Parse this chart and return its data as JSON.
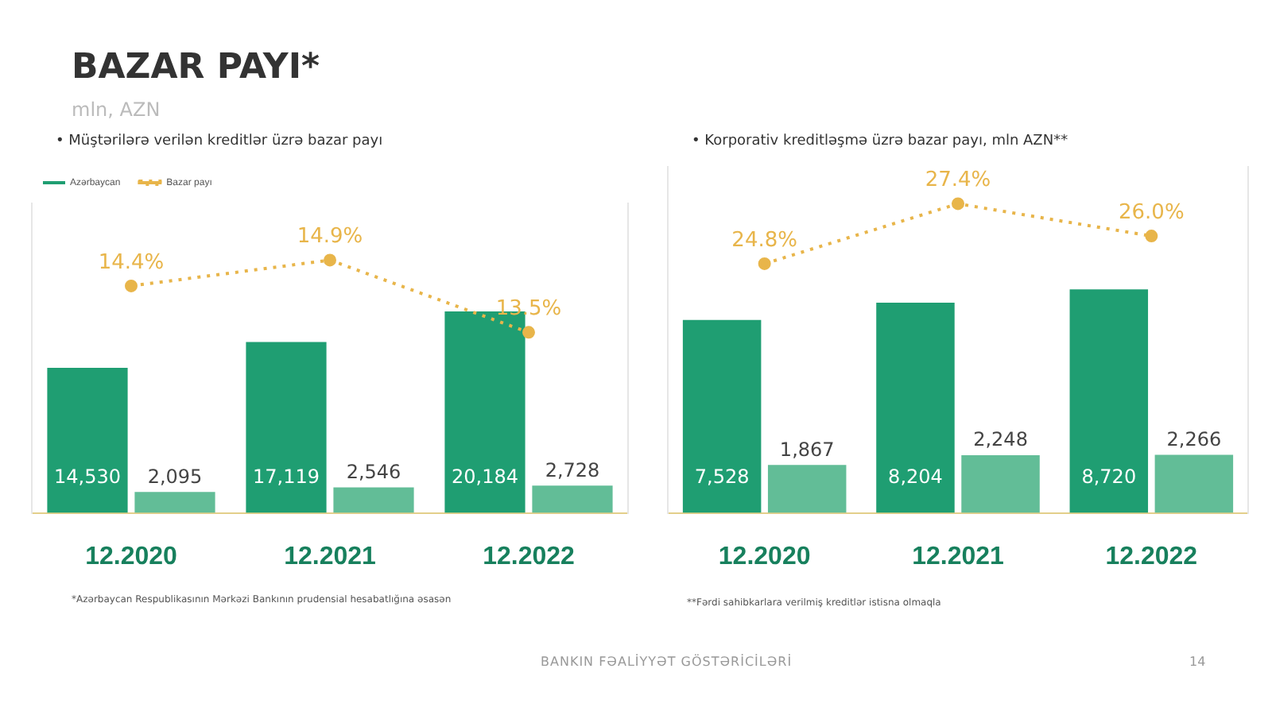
{
  "chart_data": [
    {
      "type": "bar",
      "title": "BAZAR PAYI*",
      "subtitle": "mln, AZN",
      "annotations": [
        "•  Müştərilərə verilən kreditlər üzrə bazar payı",
        "*Azərbaycan Respublikasının Mərkəzi Bankının prudensial hesabatlığına əsasən",
        "BANKIN FƏALİYYƏT GÖSTƏRİCİLƏRİ",
        "14"
      ],
      "categories": [
        "12.2020",
        "12.2021",
        "12.2022"
      ],
      "legend": "top left",
      "ylim": [
        0,
        31000
      ],
      "y2lim": [
        10,
        16
      ],
      "series": [
        {
          "name": "Azərbaycan",
          "color": "#1f9e72",
          "values": [
            14530,
            17119,
            20184
          ],
          "value_labels": [
            "14,530",
            "17,119",
            "20,184"
          ]
        },
        {
          "color": "#62bd97",
          "values": [
            2095,
            2546,
            2728
          ],
          "value_labels": [
            "2,095",
            "2,546",
            "2,728"
          ]
        },
        {
          "name": "Bazar payı",
          "type": "line",
          "axis": "y2",
          "color": "#e8b54a",
          "line_style": "dotted",
          "marker": "circle",
          "values": [
            14.4,
            14.9,
            13.5
          ],
          "value_labels": [
            "14.4%",
            "14.9%",
            "13.5%"
          ]
        }
      ]
    },
    {
      "type": "bar",
      "title": "•  Korporativ kreditləşmə üzrə bazar payı, mln AZN**",
      "annotations": [
        "**Fərdi sahibkarlara verilmiş kreditlər istisna olmaqla"
      ],
      "categories": [
        "12.2020",
        "12.2021",
        "12.2022"
      ],
      "ylim": [
        0,
        13500
      ],
      "y2lim": [
        14,
        29
      ],
      "series": [
        {
          "color": "#1f9e72",
          "values": [
            7528,
            8204,
            8720
          ],
          "value_labels": [
            "7,528",
            "8,204",
            "8,720"
          ]
        },
        {
          "color": "#62bd97",
          "values": [
            1867,
            2248,
            2266
          ],
          "value_labels": [
            "1,867",
            "2,248",
            "2,266"
          ]
        },
        {
          "type": "line",
          "axis": "y2",
          "color": "#e8b54a",
          "line_style": "dotted",
          "marker": "circle",
          "values": [
            24.8,
            27.4,
            26.0
          ],
          "value_labels": [
            "24.8%",
            "27.4%",
            "26.0%"
          ]
        }
      ]
    }
  ]
}
